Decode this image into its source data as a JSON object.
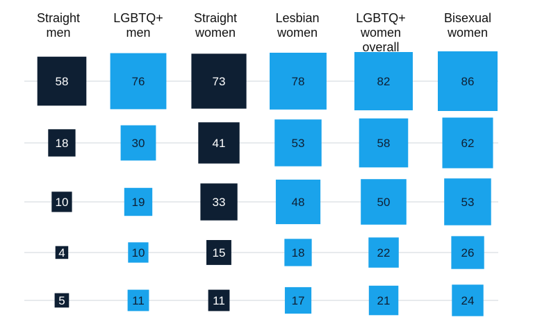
{
  "chart_data": {
    "type": "table",
    "columns": [
      {
        "label_lines": [
          "Straight",
          "men"
        ]
      },
      {
        "label_lines": [
          "LGBTQ+",
          "men"
        ]
      },
      {
        "label_lines": [
          "Straight",
          "women"
        ]
      },
      {
        "label_lines": [
          "Lesbian",
          "women"
        ]
      },
      {
        "label_lines": [
          "LGBTQ+ women",
          "overall"
        ]
      },
      {
        "label_lines": [
          "Bisexual",
          "women"
        ]
      }
    ],
    "rows": [
      [
        58,
        76,
        73,
        78,
        82,
        86
      ],
      [
        18,
        30,
        41,
        53,
        58,
        62
      ],
      [
        10,
        19,
        33,
        48,
        50,
        53
      ],
      [
        4,
        10,
        15,
        18,
        22,
        26
      ],
      [
        5,
        11,
        11,
        17,
        21,
        24
      ]
    ],
    "column_colors": [
      "#0e1f33",
      "#1aa3eb",
      "#0e1f33",
      "#1aa3eb",
      "#1aa3eb",
      "#1aa3eb"
    ],
    "label_colors": [
      "#ffffff",
      "#0e1f33",
      "#ffffff",
      "#0e1f33",
      "#0e1f33",
      "#0e1f33"
    ],
    "gridline_color": "#cfd5db"
  }
}
